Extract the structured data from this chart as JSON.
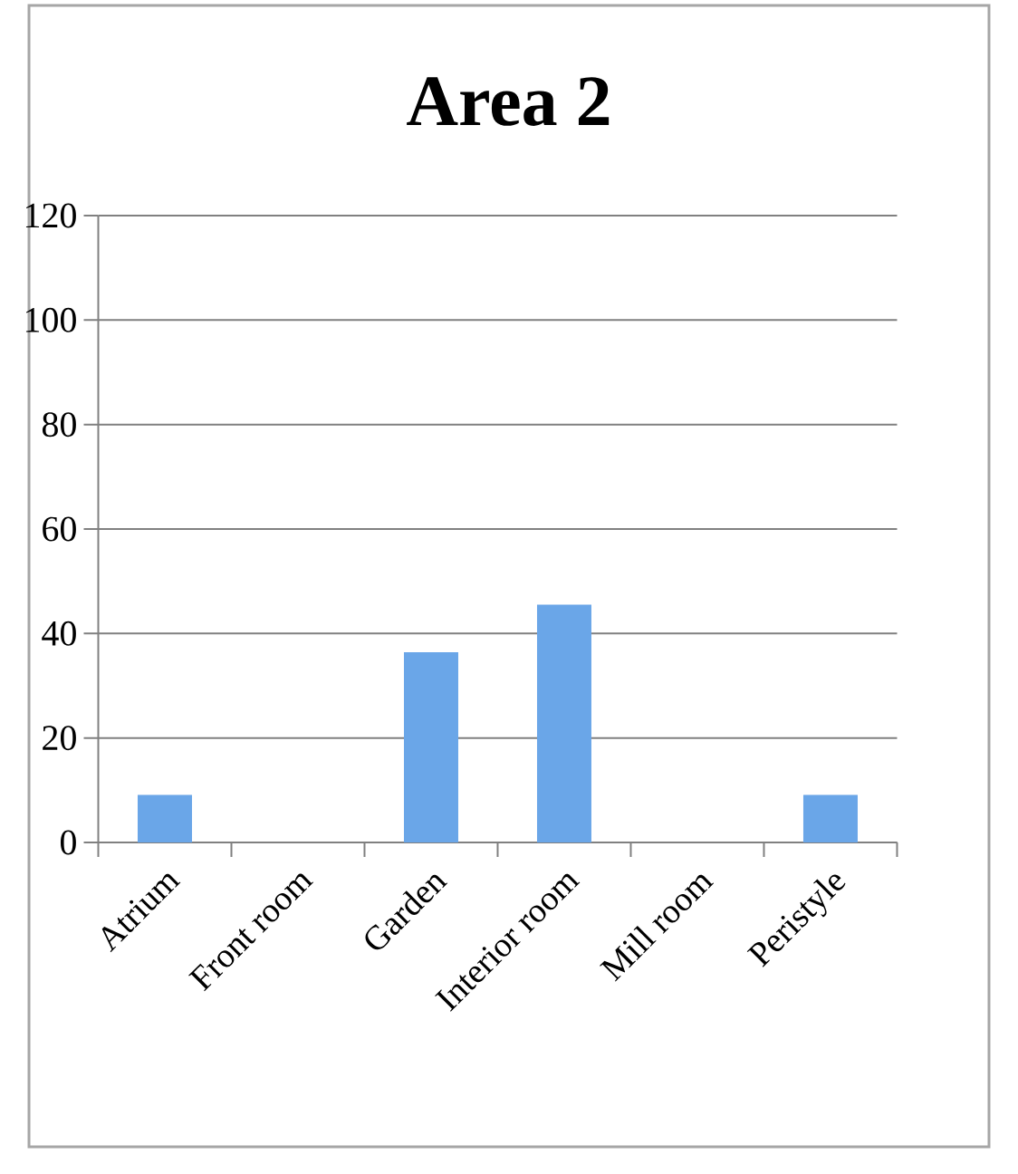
{
  "chart_data": {
    "type": "bar",
    "title": "Area 2",
    "categories": [
      "Atrium",
      "Front room",
      "Garden",
      "Interior room",
      "Mill room",
      "Peristyle"
    ],
    "values": [
      9.1,
      0,
      36.4,
      45.5,
      0,
      9.1
    ],
    "color": "#6aa6e8",
    "ylim": [
      0,
      120
    ],
    "yticks": [
      0,
      20,
      40,
      60,
      80,
      100,
      120
    ],
    "grid": "y"
  }
}
